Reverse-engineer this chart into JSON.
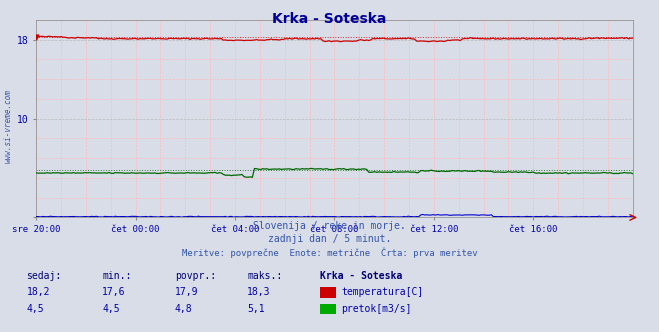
{
  "title": "Krka - Soteska",
  "title_color": "#000099",
  "bg_color": "#d8dde8",
  "plot_bg_color": "#d8dde8",
  "x_labels": [
    "sre 20:00",
    "čet 00:00",
    "čet 04:00",
    "čet 08:00",
    "čet 12:00",
    "čet 16:00"
  ],
  "x_ticks_norm": [
    0.0,
    0.1666,
    0.3333,
    0.5,
    0.6666,
    0.8333
  ],
  "y_lim": [
    0,
    20
  ],
  "temp_color": "#cc0000",
  "flow_color": "#006600",
  "height_color": "#0000cc",
  "tick_label_color": "#0000aa",
  "watermark": "www.si-vreme.com",
  "watermark_color": "#3355aa",
  "subtitle1": "Slovenija / reke in morje.",
  "subtitle2": "zadnji dan / 5 minut.",
  "subtitle3": "Meritve: povprečne  Enote: metrične  Črta: prva meritev",
  "subtitle_color": "#3355aa",
  "table_header": [
    "sedaj:",
    "min.:",
    "povpr.:",
    "maks.:",
    "Krka - Soteska"
  ],
  "temp_row": [
    "18,2",
    "17,6",
    "17,9",
    "18,3",
    "temperatura[C]"
  ],
  "flow_row": [
    "4,5",
    "4,5",
    "4,8",
    "5,1",
    "pretok[m3/s]"
  ],
  "table_color": "#0000aa",
  "table_header_color": "#000077",
  "n_points": 288
}
